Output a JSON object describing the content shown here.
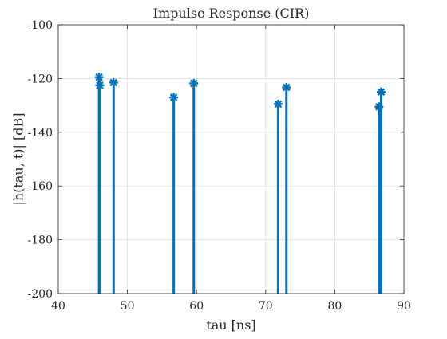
{
  "chart_data": {
    "type": "stem",
    "title": "Impulse Response (CIR)",
    "xlabel": "tau [ns]",
    "ylabel": "|h(tau, t)|  [dB]",
    "xlim": [
      40,
      90
    ],
    "ylim": [
      -200,
      -100
    ],
    "baseline": -200,
    "xticks": [
      40,
      50,
      60,
      70,
      80,
      90
    ],
    "yticks": [
      -200,
      -180,
      -160,
      -140,
      -120,
      -100
    ],
    "grid": true,
    "marker": "asterisk",
    "color": "#0072bd",
    "series": [
      {
        "x": [
          45.9,
          46.0,
          48.0,
          56.7,
          59.6,
          71.8,
          73.0,
          86.4,
          86.7
        ],
        "y": [
          -119.5,
          -122.5,
          -121.5,
          -127.0,
          -121.8,
          -129.5,
          -123.3,
          -130.5,
          -125.0
        ]
      }
    ]
  }
}
